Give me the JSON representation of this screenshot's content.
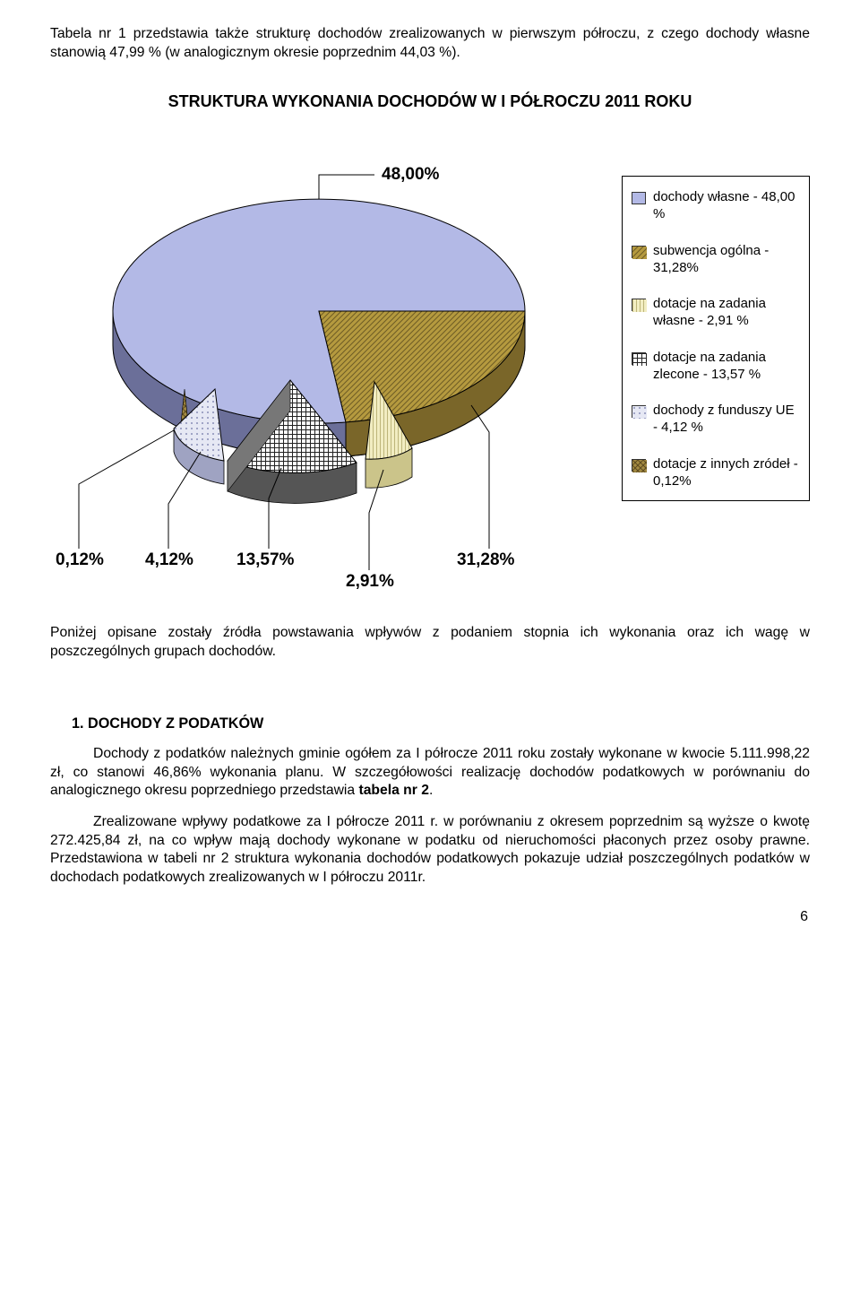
{
  "intro_paragraph": "Tabela nr 1 przedstawia także strukturę dochodów zrealizowanych w pierwszym półroczu, z czego dochody własne stanowią 47,99 % (w analogicznym okresie poprzednim 44,03 %).",
  "chart": {
    "title": "STRUKTURA WYKONANIA DOCHODÓW W I PÓŁROCZU 2011 ROKU",
    "type": "pie-3d",
    "background_color": "#ffffff",
    "title_fontsize": 18,
    "label_fontsize": 19,
    "legend_fontsize": 15,
    "slices": [
      {
        "label": "dochody własne - 48,00 %",
        "value": 48.0,
        "percent_label": "48,00%",
        "color": "#b3b9e6",
        "pattern": "solid"
      },
      {
        "label": "subwencja ogólna - 31,28%",
        "value": 31.28,
        "percent_label": "31,28%",
        "color": "#b59a3f",
        "pattern": "diag"
      },
      {
        "label": "dotacje na zadania własne - 2,91 %",
        "value": 2.91,
        "percent_label": "2,91%",
        "color": "#f2edc2",
        "pattern": "vstripe"
      },
      {
        "label": "dotacje na zadania zlecone - 13,57 %",
        "value": 13.57,
        "percent_label": "13,57%",
        "color": "#3a3a3a",
        "pattern": "grid"
      },
      {
        "label": "dochody z funduszy UE - 4,12 %",
        "value": 4.12,
        "percent_label": "4,12%",
        "color": "#d8dbee",
        "pattern": "dots"
      },
      {
        "label": "dotacje z innych zródeł - 0,12%",
        "value": 0.12,
        "percent_label": "0,12%",
        "color": "#7f6a2e",
        "pattern": "cross"
      }
    ],
    "slice_border_color": "#000000",
    "depth_color_factor": 0.62
  },
  "body_heading": "1. DOCHODY Z PODATKÓW",
  "body_para_1": "Dochody z podatków należnych gminie ogółem za I półrocze 2011 roku zostały wykonane w kwocie 5.111.998,22 zł, co stanowi 46,86% wykonania planu. W szczegółowości realizację dochodów podatkowych w porównaniu do analogicznego okresu poprzedniego przedstawia tabela nr 2.",
  "body_para_2": "Zrealizowane wpływy podatkowe za I półrocze 2011 r. w porównaniu z okresem poprzednim są wyższe o kwotę 272.425,84 zł, na co wpływ mają dochody wykonane w podatku od nieruchomości płaconych przez osoby prawne. Przedstawiona w tabeli nr 2 struktura wykonania dochodów podatkowych pokazuje udział poszczególnych podatków w dochodach podatkowych zrealizowanych w I półroczu 2011r.",
  "transition_paragraph": "Poniżej opisane zostały źródła powstawania wpływów z podaniem stopnia ich wykonania oraz ich wagę w poszczególnych grupach dochodów.",
  "tabela_bold": "tabela nr 2",
  "page_number": "6"
}
